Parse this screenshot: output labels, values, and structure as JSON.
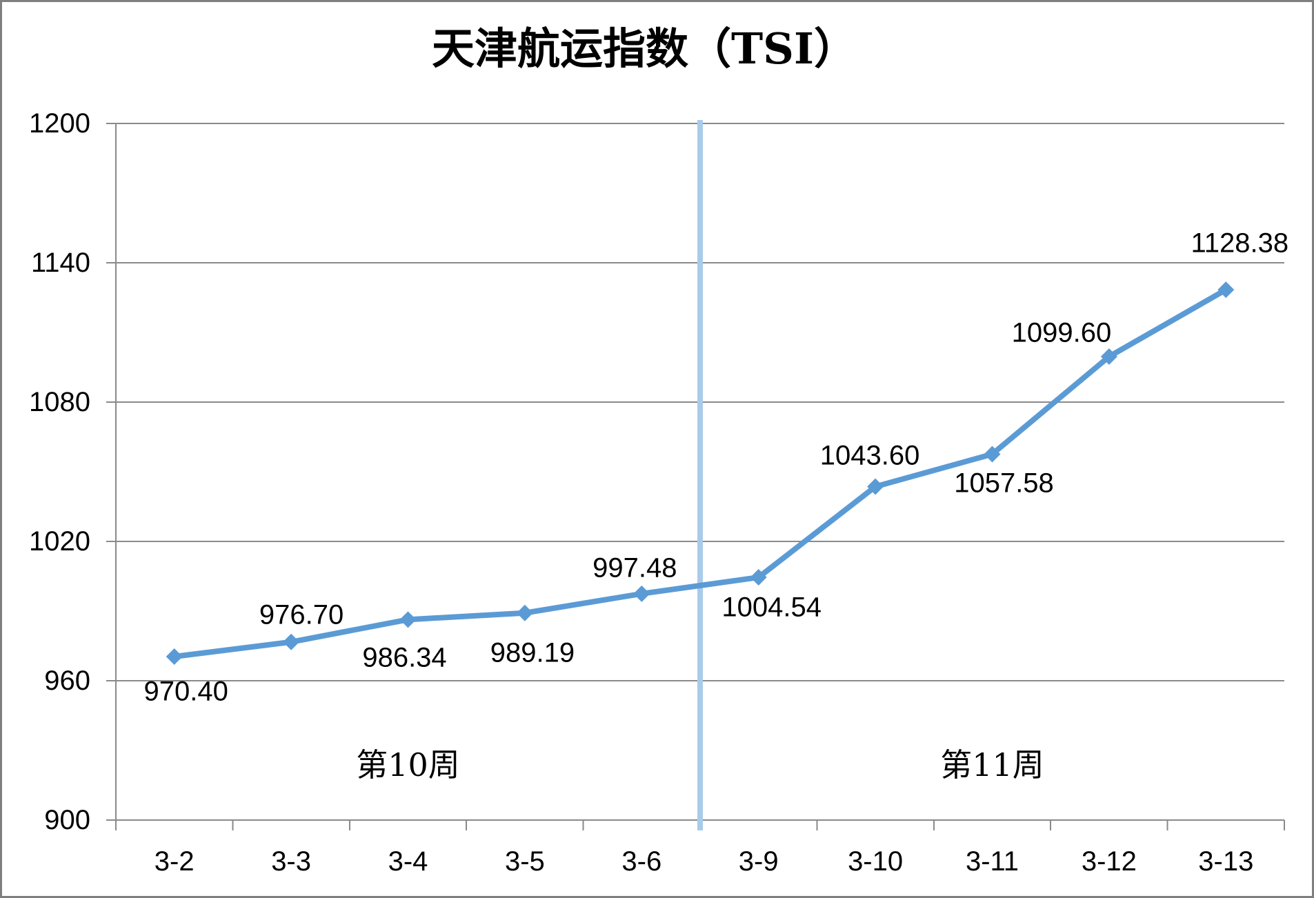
{
  "chart_data": {
    "type": "line",
    "title": "天津航运指数（TSI）",
    "categories": [
      "3-2",
      "3-3",
      "3-4",
      "3-5",
      "3-6",
      "3-9",
      "3-10",
      "3-11",
      "3-12",
      "3-13"
    ],
    "series": [
      {
        "name": "TSI",
        "color": "#5B9BD5",
        "values": [
          970.4,
          976.7,
          986.34,
          989.19,
          997.48,
          1004.54,
          1043.6,
          1057.58,
          1099.6,
          1128.38
        ],
        "data_labels": [
          "970.40",
          "976.70",
          "986.34",
          "989.19",
          "997.48",
          "1004.54",
          "1043.60",
          "1057.58",
          "1099.60",
          "1128.38"
        ],
        "label_placements": [
          "below",
          "above",
          "below",
          "below",
          "above",
          "below",
          "above",
          "below",
          "above",
          "above"
        ],
        "label_offsets": [
          [
            17,
            51
          ],
          [
            15,
            -39
          ],
          [
            -5,
            56
          ],
          [
            11,
            58
          ],
          [
            -10,
            -37
          ],
          [
            19,
            44
          ],
          [
            -8,
            -45
          ],
          [
            17,
            43
          ],
          [
            -69,
            -34
          ],
          [
            20,
            -67
          ]
        ],
        "marker": "diamond"
      }
    ],
    "y_axis": {
      "min": 900,
      "max": 1200,
      "step": 60,
      "tick_labels": [
        "1200",
        "1140",
        "1080",
        "1020",
        "960",
        "900"
      ]
    },
    "x_axis": {
      "tick_labels": [
        "3-2",
        "3-3",
        "3-4",
        "3-5",
        "3-6",
        "3-9",
        "3-10",
        "3-11",
        "3-12",
        "3-13"
      ]
    },
    "annotations": {
      "divider": {
        "between": [
          "3-6",
          "3-9"
        ],
        "color": "#A9CBE9"
      },
      "week_labels": [
        {
          "text": "第10周",
          "center_category": "3-4"
        },
        {
          "text": "第11周",
          "center_category": "3-11"
        }
      ]
    },
    "grid": true,
    "legend": "none",
    "colors": {
      "series": "#5B9BD5",
      "gridline": "#8A8A8A",
      "divider": "#A9CBE9",
      "text": "#000000",
      "background": "#FFFFFF"
    }
  }
}
